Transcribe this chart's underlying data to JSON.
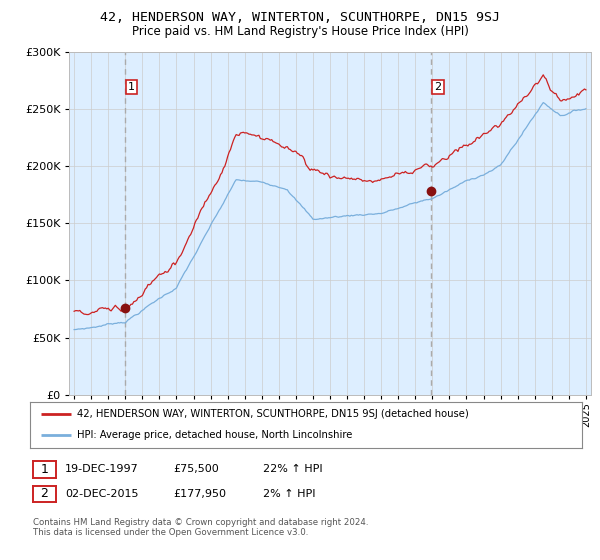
{
  "title": "42, HENDERSON WAY, WINTERTON, SCUNTHORPE, DN15 9SJ",
  "subtitle": "Price paid vs. HM Land Registry's House Price Index (HPI)",
  "legend_line1": "42, HENDERSON WAY, WINTERTON, SCUNTHORPE, DN15 9SJ (detached house)",
  "legend_line2": "HPI: Average price, detached house, North Lincolnshire",
  "table_row1": [
    "1",
    "19-DEC-1997",
    "£75,500",
    "22% ↑ HPI"
  ],
  "table_row2": [
    "2",
    "02-DEC-2015",
    "£177,950",
    "2% ↑ HPI"
  ],
  "footnote": "Contains HM Land Registry data © Crown copyright and database right 2024.\nThis data is licensed under the Open Government Licence v3.0.",
  "hpi_color": "#7aafdc",
  "price_color": "#cc2222",
  "marker_color": "#881111",
  "vline_color": "#aaaaaa",
  "bg_color": "#ddeeff",
  "grid_color": "#cccccc",
  "ylim": [
    0,
    300000
  ],
  "xlim_min": 1994.7,
  "xlim_max": 2025.3,
  "sale1_year": 1997.97,
  "sale1_price": 75500,
  "sale2_year": 2015.92,
  "sale2_price": 177950
}
